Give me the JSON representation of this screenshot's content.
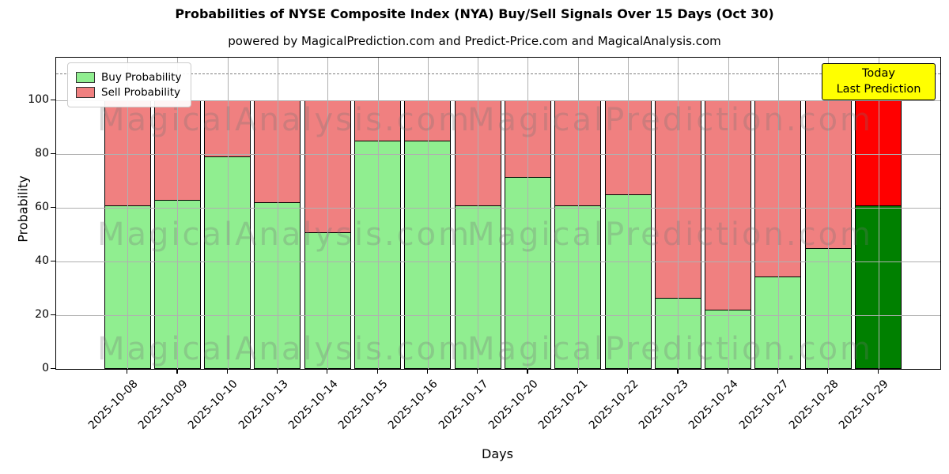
{
  "title": "Probabilities of NYSE Composite Index (NYA) Buy/Sell Signals Over 15 Days (Oct 30)",
  "subtitle": "powered by MagicalPrediction.com and Predict-Price.com and MagicalAnalysis.com",
  "annotation": {
    "line1": "Today",
    "line2": "Last Prediction"
  },
  "legend": [
    {
      "label": "Buy Probability",
      "color": "#90ee90"
    },
    {
      "label": "Sell Probability",
      "color": "#f08080"
    }
  ],
  "watermarks": {
    "texts": [
      "MagicalAnalysis.com",
      "MagicalPrediction.com"
    ],
    "color": "rgba(115,115,115,0.28)"
  },
  "colors": {
    "buy": "#90ee90",
    "sell": "#f08080",
    "buy_today": "#008000",
    "sell_today": "#ff0000",
    "bar_edge": "#000000",
    "grid": "#b0b0b0",
    "dashed_line": "#7f7f7f",
    "annotation_bg": "#ffff00"
  },
  "chart_data": {
    "type": "bar",
    "stacked": true,
    "title": "Probabilities of NYSE Composite Index (NYA) Buy/Sell Signals Over 15 Days (Oct 30)",
    "subtitle": "powered by MagicalPrediction.com and Predict-Price.com and MagicalAnalysis.com",
    "xlabel": "Days",
    "ylabel": "Probability",
    "categories": [
      "2025-10-08",
      "2025-10-09",
      "2025-10-10",
      "2025-10-13",
      "2025-10-14",
      "2025-10-15",
      "2025-10-16",
      "2025-10-17",
      "2025-10-20",
      "2025-10-21",
      "2025-10-22",
      "2025-10-23",
      "2025-10-24",
      "2025-10-27",
      "2025-10-28",
      "2025-10-29"
    ],
    "series": [
      {
        "name": "Buy Probability",
        "values": [
          61,
          63,
          79,
          62,
          51,
          85,
          85,
          61,
          71.5,
          61,
          65,
          26.5,
          22,
          34.5,
          45,
          61
        ]
      },
      {
        "name": "Sell Probability",
        "values": [
          39,
          37,
          21,
          38,
          49,
          15,
          15,
          39,
          28.5,
          39,
          35,
          73.5,
          78,
          65.5,
          55,
          39
        ]
      }
    ],
    "today_bar_index": 15,
    "yticks": [
      0,
      20,
      40,
      60,
      80,
      100
    ],
    "ylim": [
      0,
      116
    ],
    "dashed_line_y": 110,
    "grid": true,
    "legend_position": "upper-left"
  }
}
